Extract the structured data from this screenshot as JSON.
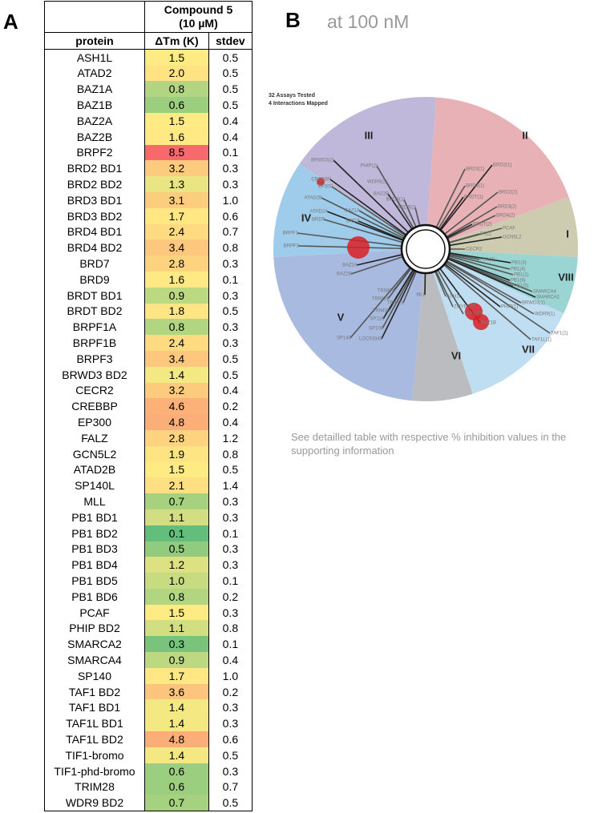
{
  "panel_a": {
    "label": "A",
    "header": {
      "compound": "Compound 5",
      "concentration": "(10 µM)",
      "columns": [
        "protein",
        "ΔTm (K)",
        "stdev"
      ]
    },
    "rows": [
      [
        "ASH1L",
        "1.5",
        "0.5"
      ],
      [
        "ATAD2",
        "2.0",
        "0.5"
      ],
      [
        "BAZ1A",
        "0.8",
        "0.5"
      ],
      [
        "BAZ1B",
        "0.6",
        "0.5"
      ],
      [
        "BAZ2A",
        "1.5",
        "0.4"
      ],
      [
        "BAZ2B",
        "1.6",
        "0.4"
      ],
      [
        "BRPF2",
        "8.5",
        "0.1"
      ],
      [
        "BRD2 BD1",
        "3.2",
        "0.3"
      ],
      [
        "BRD2 BD2",
        "1.3",
        "0.3"
      ],
      [
        "BRD3 BD1",
        "3.1",
        "1.0"
      ],
      [
        "BRD3 BD2",
        "1.7",
        "0.6"
      ],
      [
        "BRD4 BD1",
        "2.4",
        "0.7"
      ],
      [
        "BRD4 BD2",
        "3.4",
        "0.8"
      ],
      [
        "BRD7",
        "2.8",
        "0.3"
      ],
      [
        "BRD9",
        "1.6",
        "0.1"
      ],
      [
        "BRDT BD1",
        "0.9",
        "0.3"
      ],
      [
        "BRDT BD2",
        "1.8",
        "0.5"
      ],
      [
        "BRPF1A",
        "0.8",
        "0.3"
      ],
      [
        "BRPF1B",
        "2.4",
        "0.3"
      ],
      [
        "BRPF3",
        "3.4",
        "0.5"
      ],
      [
        "BRWD3 BD2",
        "1.4",
        "0.5"
      ],
      [
        "CECR2",
        "3.2",
        "0.4"
      ],
      [
        "CREBBP",
        "4.6",
        "0.2"
      ],
      [
        "EP300",
        "4.8",
        "0.4"
      ],
      [
        "FALZ",
        "2.8",
        "1.2"
      ],
      [
        "GCN5L2",
        "1.9",
        "0.8"
      ],
      [
        "ATAD2B",
        "1.5",
        "0.5"
      ],
      [
        "SP140L",
        "2.1",
        "1.4"
      ],
      [
        "MLL",
        "0.7",
        "0.3"
      ],
      [
        "PB1 BD1",
        "1.1",
        "0.3"
      ],
      [
        "PB1 BD2",
        "0.1",
        "0.1"
      ],
      [
        "PB1 BD3",
        "0.5",
        "0.3"
      ],
      [
        "PB1 BD4",
        "1.2",
        "0.3"
      ],
      [
        "PB1 BD5",
        "1.0",
        "0.1"
      ],
      [
        "PB1 BD6",
        "0.8",
        "0.2"
      ],
      [
        "PCAF",
        "1.5",
        "0.3"
      ],
      [
        "PHIP BD2",
        "1.1",
        "0.8"
      ],
      [
        "SMARCA2",
        "0.3",
        "0.1"
      ],
      [
        "SMARCA4",
        "0.9",
        "0.4"
      ],
      [
        "SP140",
        "1.7",
        "1.0"
      ],
      [
        "TAF1 BD2",
        "3.6",
        "0.2"
      ],
      [
        "TAF1 BD1",
        "1.4",
        "0.3"
      ],
      [
        "TAF1L BD1",
        "1.4",
        "0.3"
      ],
      [
        "TAF1L BD2",
        "4.8",
        "0.6"
      ],
      [
        "TIF1-bromo",
        "1.4",
        "0.5"
      ],
      [
        "TIF1-phd-bromo",
        "0.6",
        "0.3"
      ],
      [
        "TRIM28",
        "0.6",
        "0.7"
      ],
      [
        "WDR9 BD2",
        "0.7",
        "0.5"
      ]
    ]
  },
  "panel_b": {
    "label": "B",
    "subtitle": "at 100 nM",
    "assays": "32 Assays Tested",
    "interactions": "4 Interactions Mapped",
    "groups": [
      "I",
      "II",
      "III",
      "IV",
      "V",
      "VI",
      "VII",
      "VIII"
    ],
    "leaves": [
      "BRWD3(2)",
      "PHIP(2)",
      "WDR9(2)",
      "BAZ2B",
      "BRD9(1)",
      "BRD8(2)",
      "CREBBP",
      "EP300",
      "ATAD2B",
      "ATAD2A",
      "BAZ1A",
      "BRD9",
      "BRD7",
      "BRPF1",
      "BRPF3",
      "BAZ2A",
      "BAZ2B",
      "BRD3(1)",
      "BRD2(1)",
      "BRD4(1)",
      "BRD2(2)",
      "BRDT(1)",
      "BRD3(2)",
      "BRD4(2)",
      "BRDT(2)",
      "PCAF",
      "FALZ",
      "GCN5L2",
      "CECR2",
      "PB1(2)",
      "PB1(3)",
      "PB1(4)",
      "PB1(1)",
      "PB1(6)",
      "PB1(5)",
      "SMARCA4",
      "SMARCA2",
      "BRWD3(1)",
      "WDR9(1)",
      "PHIP(1)",
      "ZMYND11",
      "TAF1(2)",
      "BAZ1B",
      "TAF1(1)",
      "TAF1L(1)",
      "MLL",
      "ASH1L",
      "TRIM28",
      "TRIM66",
      "TRIM24",
      "TRIM33",
      "SP110",
      "SP100",
      "SP140",
      "LOC93349"
    ],
    "caption": "See detailled table with respective % inhibition values in the supporting information"
  }
}
